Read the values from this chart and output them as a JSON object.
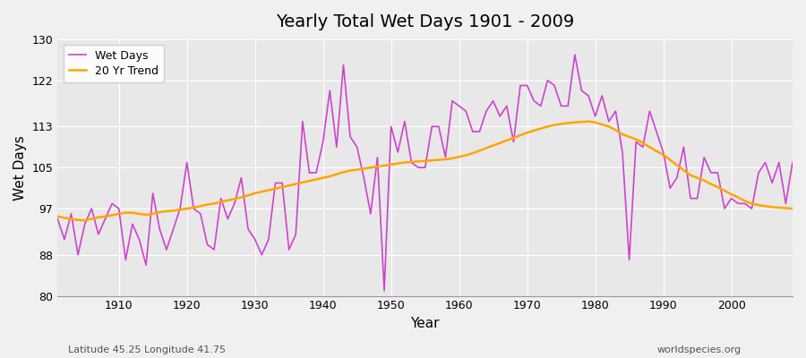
{
  "title": "Yearly Total Wet Days 1901 - 2009",
  "xlabel": "Year",
  "ylabel": "Wet Days",
  "subtitle_left": "Latitude 45.25 Longitude 41.75",
  "subtitle_right": "worldspecies.org",
  "ylim": [
    80,
    130
  ],
  "xlim": [
    1901,
    2009
  ],
  "yticks": [
    80,
    88,
    97,
    105,
    113,
    122,
    130
  ],
  "xticks": [
    1910,
    1920,
    1930,
    1940,
    1950,
    1960,
    1970,
    1980,
    1990,
    2000
  ],
  "wet_days_color": "#CC44CC",
  "trend_color": "#FFA500",
  "background_color": "#E8E8E8",
  "fig_background": "#F0F0F0",
  "legend_labels": [
    "Wet Days",
    "20 Yr Trend"
  ],
  "years": [
    1901,
    1902,
    1903,
    1904,
    1905,
    1906,
    1907,
    1908,
    1909,
    1910,
    1911,
    1912,
    1913,
    1914,
    1915,
    1916,
    1917,
    1918,
    1919,
    1920,
    1921,
    1922,
    1923,
    1924,
    1925,
    1926,
    1927,
    1928,
    1929,
    1930,
    1931,
    1932,
    1933,
    1934,
    1935,
    1936,
    1937,
    1938,
    1939,
    1940,
    1941,
    1942,
    1943,
    1944,
    1945,
    1946,
    1947,
    1948,
    1949,
    1950,
    1951,
    1952,
    1953,
    1954,
    1955,
    1956,
    1957,
    1958,
    1959,
    1960,
    1961,
    1962,
    1963,
    1964,
    1965,
    1966,
    1967,
    1968,
    1969,
    1970,
    1971,
    1972,
    1973,
    1974,
    1975,
    1976,
    1977,
    1978,
    1979,
    1980,
    1981,
    1982,
    1983,
    1984,
    1985,
    1986,
    1987,
    1988,
    1989,
    1990,
    1991,
    1992,
    1993,
    1994,
    1995,
    1996,
    1997,
    1998,
    1999,
    2000,
    2001,
    2002,
    2003,
    2004,
    2005,
    2006,
    2007,
    2008,
    2009
  ],
  "wet_days": [
    95,
    91,
    96,
    88,
    94,
    97,
    92,
    95,
    98,
    97,
    87,
    94,
    91,
    86,
    100,
    93,
    89,
    93,
    97,
    106,
    97,
    96,
    90,
    89,
    99,
    95,
    98,
    103,
    93,
    91,
    88,
    91,
    102,
    102,
    89,
    92,
    114,
    104,
    104,
    110,
    120,
    109,
    125,
    111,
    109,
    103,
    96,
    107,
    81,
    113,
    108,
    114,
    106,
    105,
    105,
    113,
    113,
    107,
    118,
    117,
    116,
    112,
    112,
    116,
    118,
    115,
    117,
    110,
    121,
    121,
    118,
    117,
    122,
    121,
    117,
    117,
    127,
    120,
    119,
    115,
    119,
    114,
    116,
    108,
    87,
    110,
    109,
    116,
    112,
    108,
    101,
    103,
    109,
    99,
    99,
    107,
    104,
    104,
    97,
    99,
    98,
    98,
    97,
    104,
    106,
    102,
    106,
    98,
    106
  ],
  "trend_years": [
    1901,
    1902,
    1903,
    1904,
    1905,
    1906,
    1907,
    1908,
    1909,
    1910,
    1911,
    1912,
    1913,
    1914,
    1915,
    1916,
    1917,
    1918,
    1919,
    1920,
    1921,
    1922,
    1923,
    1924,
    1925,
    1926,
    1927,
    1928,
    1929,
    1930,
    1931,
    1932,
    1933,
    1934,
    1935,
    1936,
    1937,
    1938,
    1939,
    1940,
    1941,
    1942,
    1943,
    1944,
    1945,
    1946,
    1947,
    1948,
    1949,
    1950,
    1951,
    1952,
    1953,
    1954,
    1955,
    1956,
    1957,
    1958,
    1959,
    1960,
    1961,
    1962,
    1963,
    1964,
    1965,
    1966,
    1967,
    1968,
    1969,
    1970,
    1971,
    1972,
    1973,
    1974,
    1975,
    1976,
    1977,
    1978,
    1979,
    1980,
    1981,
    1982,
    1983,
    1984,
    1985,
    1986,
    1987,
    1988,
    1989,
    1990,
    1991,
    1992,
    1993,
    1994,
    1995,
    1996,
    1997,
    1998,
    1999,
    2000,
    2001,
    2002,
    2003,
    2004,
    2005,
    2006,
    2007,
    2008,
    2009
  ],
  "trend_values": [
    95.5,
    95.2,
    95.0,
    94.8,
    94.7,
    95.0,
    95.3,
    95.5,
    95.7,
    96.0,
    96.2,
    96.2,
    96.0,
    95.8,
    96.0,
    96.3,
    96.5,
    96.6,
    96.8,
    97.0,
    97.2,
    97.5,
    97.8,
    98.0,
    98.3,
    98.6,
    98.9,
    99.2,
    99.6,
    100.0,
    100.3,
    100.6,
    100.9,
    101.2,
    101.5,
    101.8,
    102.1,
    102.4,
    102.7,
    103.0,
    103.3,
    103.7,
    104.1,
    104.4,
    104.6,
    104.8,
    105.0,
    105.2,
    105.4,
    105.6,
    105.8,
    106.0,
    106.1,
    106.2,
    106.3,
    106.4,
    106.5,
    106.6,
    106.8,
    107.1,
    107.4,
    107.8,
    108.3,
    108.8,
    109.3,
    109.8,
    110.3,
    110.8,
    111.3,
    111.8,
    112.2,
    112.6,
    113.0,
    113.3,
    113.5,
    113.7,
    113.8,
    113.9,
    114.0,
    113.8,
    113.4,
    113.0,
    112.3,
    111.5,
    111.0,
    110.5,
    109.8,
    109.0,
    108.2,
    107.5,
    106.5,
    105.5,
    104.5,
    103.5,
    103.0,
    102.5,
    101.8,
    101.2,
    100.5,
    99.8,
    99.2,
    98.5,
    98.0,
    97.7,
    97.5,
    97.3,
    97.2,
    97.1,
    97.0
  ]
}
